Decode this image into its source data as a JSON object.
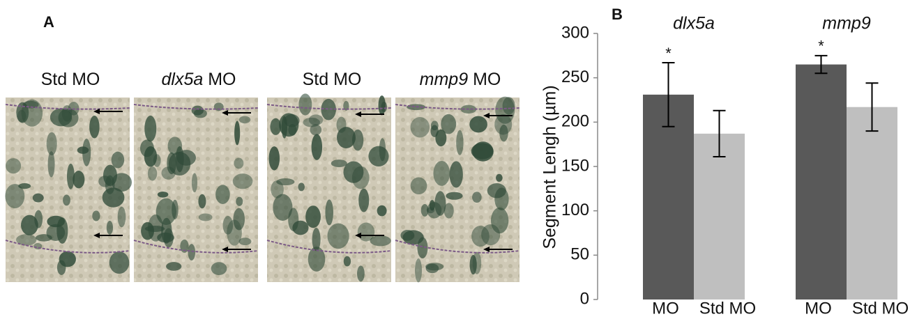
{
  "panel_a": {
    "label": "A",
    "images": [
      {
        "label": "Std MO"
      },
      {
        "gene": "dlx5a",
        "label": "MO"
      },
      {
        "label": "Std MO"
      },
      {
        "gene": "mmp9",
        "label": "MO"
      }
    ]
  },
  "chart_data": {
    "type": "bar",
    "label": "B",
    "ylabel": "Segment Lengh (µm)",
    "ylim": [
      0,
      300
    ],
    "yticks": [
      0,
      50,
      100,
      150,
      200,
      250,
      300
    ],
    "colors": [
      "#595959",
      "#bfbfbf"
    ],
    "groups": [
      {
        "title": "dlx5a",
        "categories": [
          "MO",
          "Std MO"
        ],
        "values": [
          231,
          187
        ],
        "errors": [
          36,
          26
        ],
        "annotations": [
          "*",
          null
        ]
      },
      {
        "title": "mmp9",
        "categories": [
          "MO",
          "Std MO"
        ],
        "values": [
          265,
          217
        ],
        "errors": [
          10,
          27
        ],
        "annotations": [
          "*",
          null
        ]
      }
    ]
  }
}
